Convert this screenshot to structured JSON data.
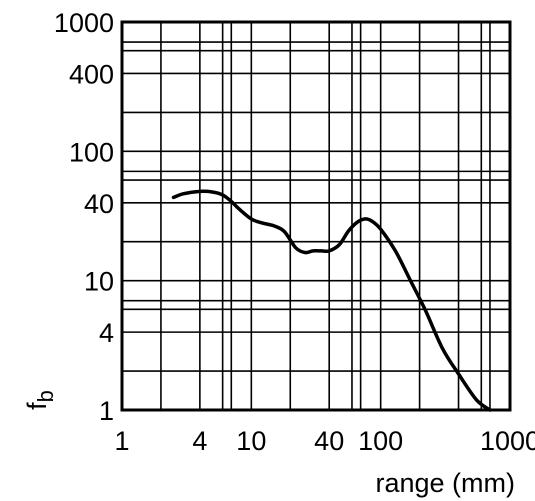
{
  "chart_data": {
    "type": "line",
    "title": "",
    "xlabel": "range (mm)",
    "ylabel": "f_b",
    "ylabel_main": "f",
    "ylabel_sub": "b",
    "xscale": "log",
    "yscale": "log",
    "xlim": [
      1,
      1000
    ],
    "ylim": [
      1,
      1000
    ],
    "grid": true,
    "x_ticks": [
      1,
      4,
      10,
      40,
      100,
      1000
    ],
    "x_tick_labels": [
      "1",
      "4",
      "10",
      "40",
      "100",
      "1000"
    ],
    "y_ticks": [
      1,
      4,
      10,
      40,
      100,
      400,
      1000
    ],
    "y_tick_labels": [
      "1",
      "4",
      "10",
      "40",
      "100",
      "400",
      "1000"
    ],
    "x_grid": [
      1,
      2,
      4,
      6,
      7,
      10,
      20,
      40,
      60,
      70,
      100,
      200,
      400,
      600,
      700,
      1000
    ],
    "y_grid": [
      1,
      2,
      4,
      6,
      7,
      10,
      20,
      40,
      60,
      70,
      100,
      200,
      400,
      600,
      700,
      1000
    ],
    "series": [
      {
        "x": [
          2.5,
          3,
          4,
          5,
          6,
          7,
          8,
          10,
          12,
          15,
          18,
          22,
          26,
          30,
          35,
          40,
          48,
          56,
          65,
          75,
          85,
          100,
          130,
          170,
          220,
          300,
          400,
          550,
          700
        ],
        "y": [
          44,
          47,
          49,
          48.5,
          46,
          41,
          36,
          30,
          28,
          26.5,
          24,
          18,
          16.5,
          17,
          17,
          17,
          19,
          24,
          28,
          30,
          29,
          25,
          17,
          10,
          6,
          3,
          1.9,
          1.2,
          0.95
        ]
      }
    ]
  }
}
